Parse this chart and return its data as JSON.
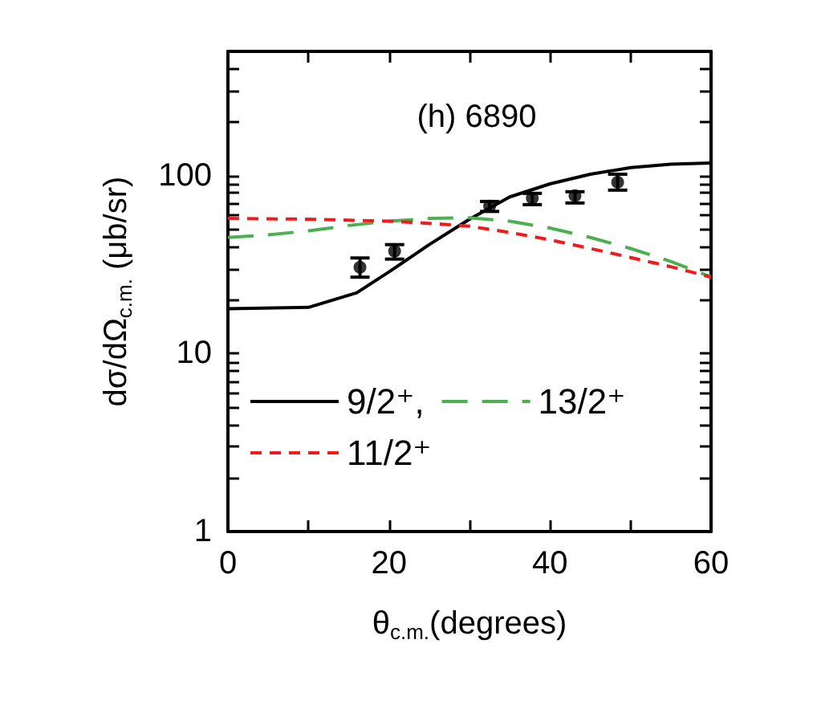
{
  "chart_data": {
    "type": "line",
    "title": "(h) 6890",
    "xlabel": "θ$_{c.m.}$(degrees)",
    "ylabel": "dσ/dΩ$_{c.m.}$ (μb/sr)",
    "log": "y",
    "xlim": [
      0,
      60
    ],
    "ylim": [
      1,
      500
    ],
    "legend": "bottom left",
    "grid": false,
    "xticks": [
      0,
      {
        "value": 10,
        "label": null
      },
      20,
      {
        "value": 30,
        "label": null
      },
      40,
      {
        "value": 50,
        "label": null
      },
      60
    ],
    "yticks": [
      1,
      {
        "value": 2,
        "label": null
      },
      {
        "value": 3,
        "label": null
      },
      {
        "value": 4,
        "label": null
      },
      {
        "value": 5,
        "label": null
      },
      {
        "value": 6,
        "label": null
      },
      {
        "value": 7,
        "label": null
      },
      {
        "value": 8,
        "label": null
      },
      {
        "value": 9,
        "label": null
      },
      10,
      {
        "value": 20,
        "label": null
      },
      {
        "value": 30,
        "label": null
      },
      {
        "value": 40,
        "label": null
      },
      {
        "value": 50,
        "label": null
      },
      {
        "value": 60,
        "label": null
      },
      {
        "value": 70,
        "label": null
      },
      {
        "value": 80,
        "label": null
      },
      {
        "value": 90,
        "label": null
      },
      100,
      {
        "value": 200,
        "label": null
      },
      {
        "value": 300,
        "label": null
      },
      {
        "value": 400,
        "label": null
      },
      {
        "value": 500,
        "label": null
      }
    ],
    "series": [
      {
        "name": "9/2⁺,",
        "color": "#000000",
        "line_style": "solid",
        "marker": "none",
        "x": [
          0,
          10,
          16,
          20,
          25,
          30,
          35,
          40,
          45,
          50,
          55,
          60
        ],
        "values": [
          17.9,
          18.2,
          22,
          28.8,
          41,
          57,
          76,
          90,
          102,
          111,
          116,
          118
        ]
      },
      {
        "name": "13/2⁺",
        "color": "#4caf50",
        "line_style": "dashed",
        "marker": "none",
        "x": [
          0,
          5,
          10,
          15,
          20,
          25,
          30,
          35,
          40,
          45,
          50,
          55,
          60
        ],
        "values": [
          45,
          46.5,
          49,
          52.5,
          55.5,
          57.5,
          58,
          55.5,
          50.8,
          45,
          39,
          33,
          27
        ]
      },
      {
        "name": "11/2⁺",
        "color": "#ee1c1c",
        "line_style": "dotted",
        "marker": "none",
        "x": [
          0,
          10,
          20,
          25,
          30,
          35,
          40,
          45,
          50,
          55,
          60
        ],
        "values": [
          57.5,
          57,
          55.5,
          54,
          52,
          48,
          43.6,
          39,
          34.7,
          30.8,
          26.9
        ]
      },
      {
        "type": "scatter",
        "color": "#000000",
        "marker": "circle",
        "x": [
          16.4,
          20.7,
          32.5,
          37.8,
          43.1,
          48.4
        ],
        "values": [
          30.6,
          37.7,
          67.4,
          74.8,
          77.3,
          92
        ],
        "errors": [
          [
            26.9,
            34.5
          ],
          [
            34,
            41
          ],
          [
            63,
            71.7
          ],
          [
            68.8,
            79.6
          ],
          [
            70.3,
            81.3
          ],
          [
            83,
            102
          ]
        ]
      }
    ]
  }
}
